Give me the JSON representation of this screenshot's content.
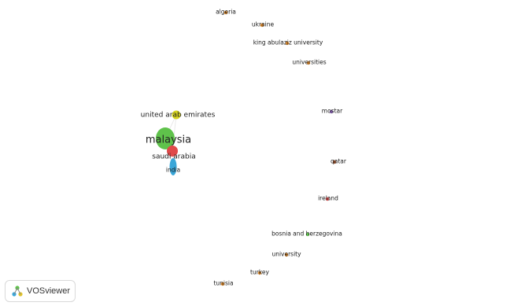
{
  "app": {
    "name": "VOSviewer"
  },
  "colors": {
    "green": "#5fc24b",
    "red": "#e04a4a",
    "blue": "#3aa6d8",
    "yellow": "#d8d61f",
    "purple": "#8a63b8",
    "brown": "#a0522d",
    "orange": "#e08a2a"
  },
  "network": {
    "items": [
      {
        "id": "algeria",
        "label": "algeria",
        "color": "orange",
        "weight": 1
      },
      {
        "id": "ukraine",
        "label": "ukraine",
        "color": "orange",
        "weight": 1
      },
      {
        "id": "kau",
        "label": "king abulaziz university",
        "color": "orange",
        "weight": 1
      },
      {
        "id": "universities",
        "label": "universities",
        "color": "orange",
        "weight": 1
      },
      {
        "id": "mostar",
        "label": "mostar",
        "color": "purple",
        "weight": 1
      },
      {
        "id": "uae",
        "label": "united arab emirates",
        "color": "yellow",
        "weight": 3
      },
      {
        "id": "malaysia",
        "label": "malaysia",
        "color": "green",
        "weight": 10
      },
      {
        "id": "saudi",
        "label": "saudi arabia",
        "color": "red",
        "weight": 4
      },
      {
        "id": "india",
        "label": "india",
        "color": "blue",
        "weight": 3
      },
      {
        "id": "qatar",
        "label": "qatar",
        "color": "brown",
        "weight": 1
      },
      {
        "id": "ireland",
        "label": "ireland",
        "color": "red",
        "weight": 1
      },
      {
        "id": "bosnia",
        "label": "bosnia and herzegovina",
        "color": "green",
        "weight": 1
      },
      {
        "id": "university",
        "label": "university",
        "color": "orange",
        "weight": 1
      },
      {
        "id": "turkey",
        "label": "turkey",
        "color": "orange",
        "weight": 1
      },
      {
        "id": "tunisia",
        "label": "tunisia",
        "color": "orange",
        "weight": 1
      }
    ]
  }
}
